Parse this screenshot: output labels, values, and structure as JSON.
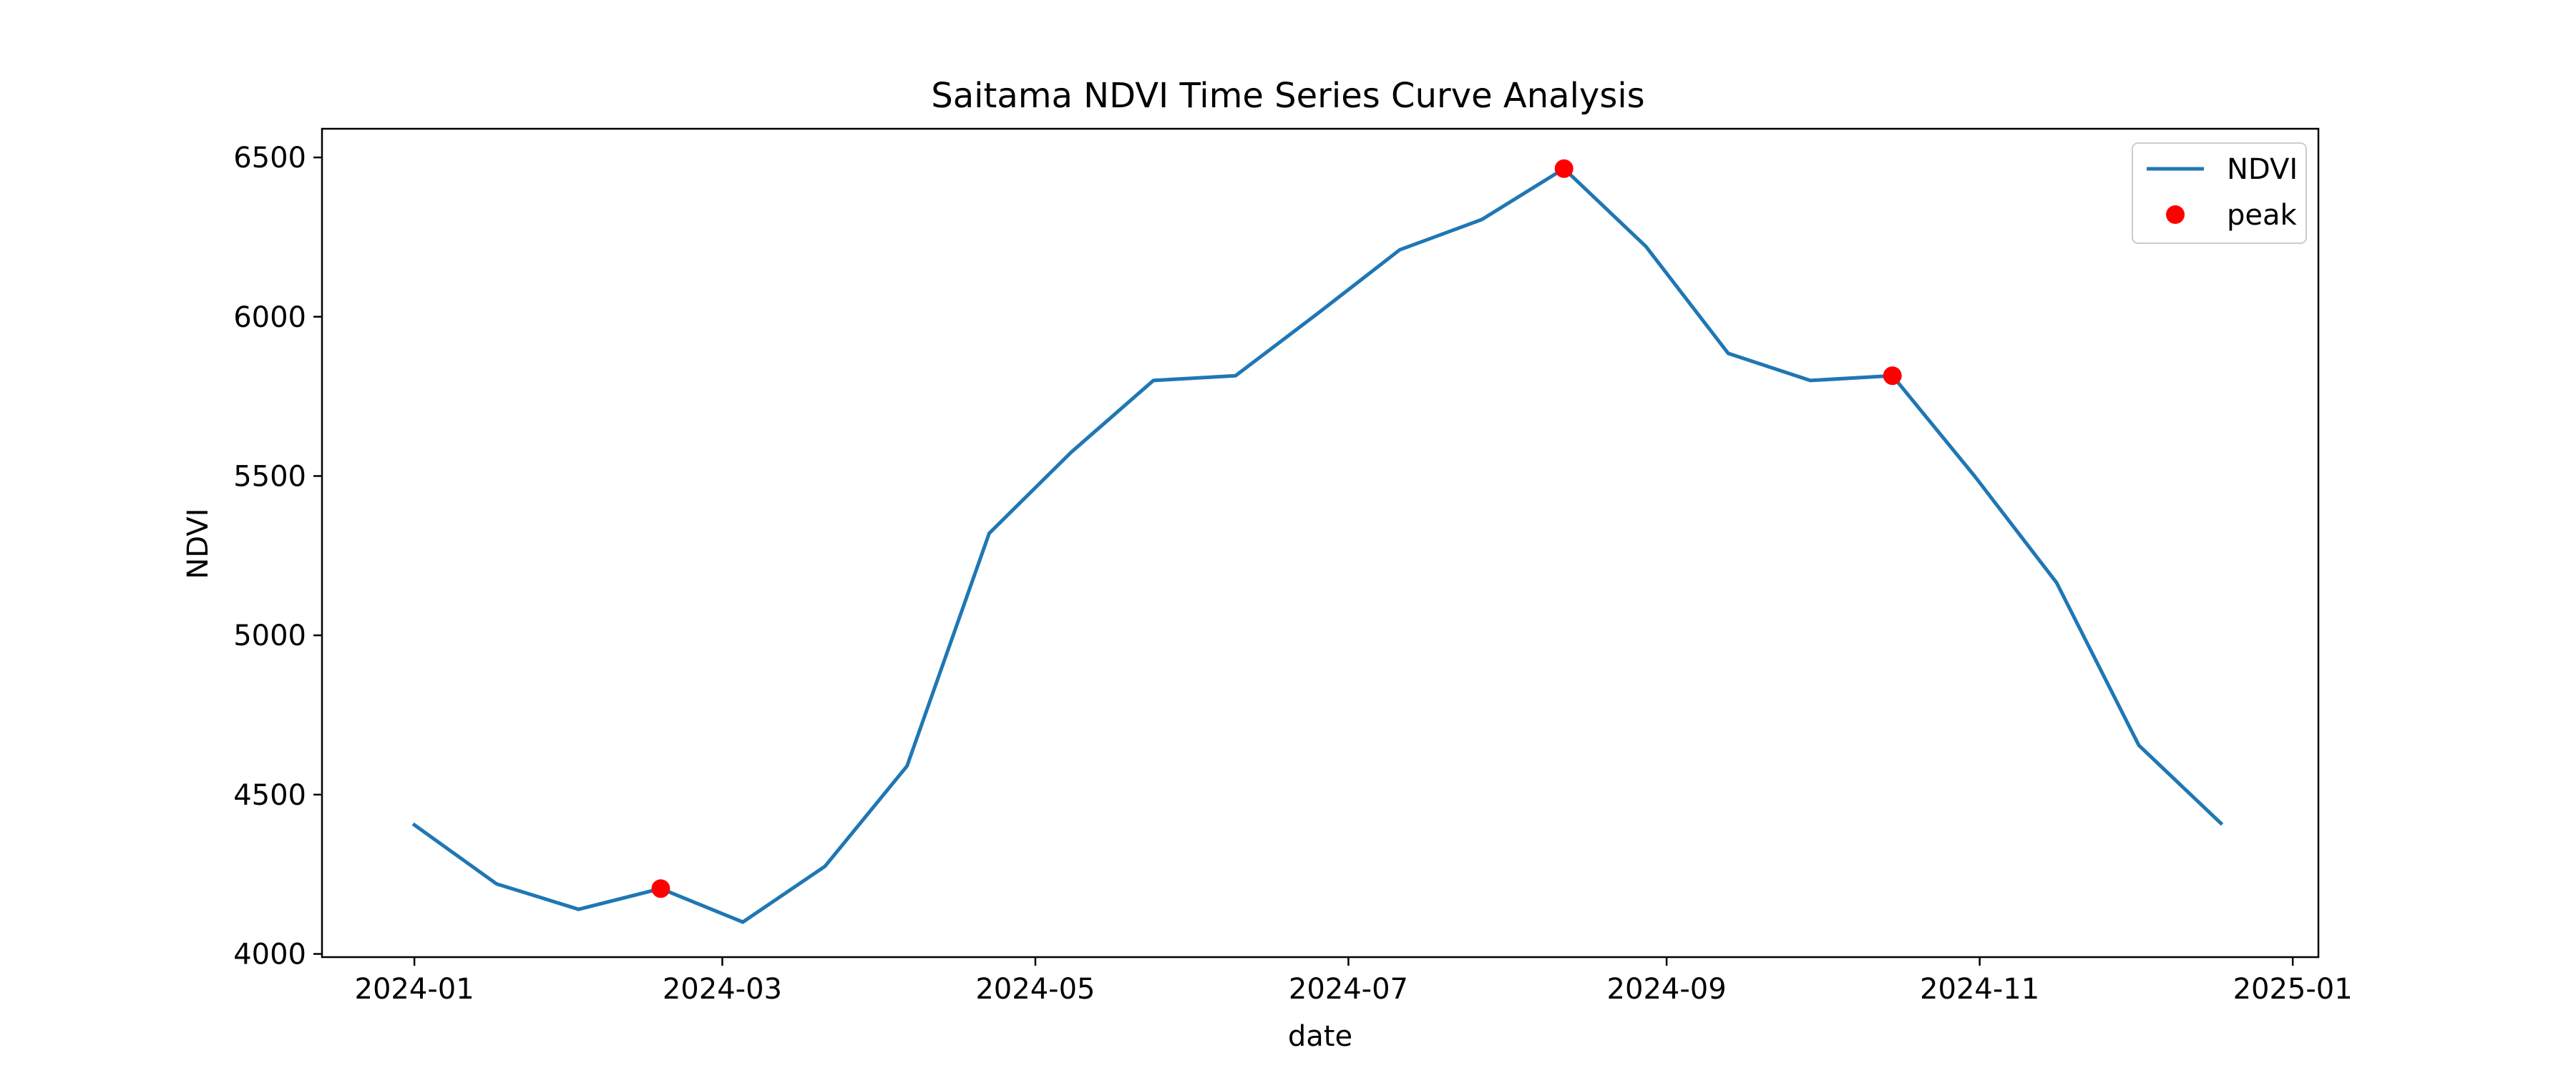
{
  "chart_data": {
    "type": "line",
    "title": "Saitama NDVI Time Series Curve Analysis",
    "xlabel": "date",
    "ylabel": "NDVI",
    "ylim": [
      3990,
      6590
    ],
    "xlim": [
      "2023-12-14",
      "2025-01-06"
    ],
    "grid": false,
    "legend_position": "top-right",
    "x_ticks": [
      "2024-01",
      "2024-03",
      "2024-05",
      "2024-07",
      "2024-09",
      "2024-11",
      "2025-01"
    ],
    "y_ticks": [
      4000,
      4500,
      5000,
      5500,
      6000,
      6500
    ],
    "series": [
      {
        "name": "NDVI",
        "kind": "line",
        "color": "#1f77b4",
        "points": [
          {
            "x": "2024-01-01",
            "y": 4405
          },
          {
            "x": "2024-01-17",
            "y": 4220
          },
          {
            "x": "2024-02-02",
            "y": 4140
          },
          {
            "x": "2024-02-18",
            "y": 4205
          },
          {
            "x": "2024-03-05",
            "y": 4100
          },
          {
            "x": "2024-03-21",
            "y": 4275
          },
          {
            "x": "2024-04-06",
            "y": 4590
          },
          {
            "x": "2024-04-22",
            "y": 5320
          },
          {
            "x": "2024-05-08",
            "y": 5575
          },
          {
            "x": "2024-05-24",
            "y": 5800
          },
          {
            "x": "2024-06-09",
            "y": 5815
          },
          {
            "x": "2024-06-25",
            "y": 6010
          },
          {
            "x": "2024-07-11",
            "y": 6210
          },
          {
            "x": "2024-07-27",
            "y": 6305
          },
          {
            "x": "2024-08-12",
            "y": 6465
          },
          {
            "x": "2024-08-28",
            "y": 6220
          },
          {
            "x": "2024-09-13",
            "y": 5885
          },
          {
            "x": "2024-09-29",
            "y": 5800
          },
          {
            "x": "2024-10-15",
            "y": 5815
          },
          {
            "x": "2024-10-31",
            "y": 5500
          },
          {
            "x": "2024-11-16",
            "y": 5165
          },
          {
            "x": "2024-12-02",
            "y": 4655
          },
          {
            "x": "2024-12-18",
            "y": 4410
          }
        ]
      },
      {
        "name": "peak",
        "kind": "scatter",
        "color": "#ff0000",
        "points": [
          {
            "x": "2024-02-18",
            "y": 4205
          },
          {
            "x": "2024-08-12",
            "y": 6465
          },
          {
            "x": "2024-10-15",
            "y": 5815
          }
        ]
      }
    ]
  }
}
